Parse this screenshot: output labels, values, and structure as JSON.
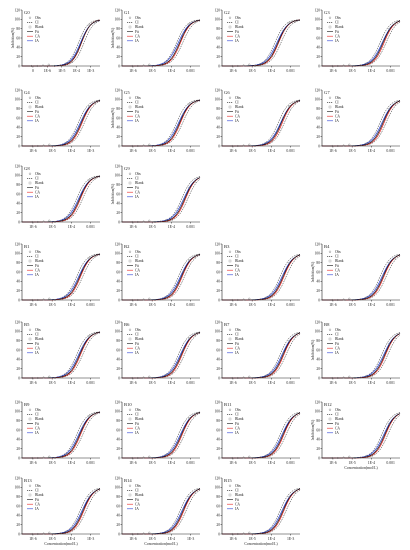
{
  "legend_labels": [
    "Obs",
    "CI",
    "Blank",
    "Fit",
    "CA",
    "IA"
  ],
  "styles": {
    "colors": {
      "fit": "#111111",
      "ca": "#e8211f",
      "ia": "#2b3fd6",
      "obs": "#777777",
      "ci": "#222222",
      "axis": "#222222"
    }
  },
  "chart_data": [
    {
      "type": "line",
      "panel": "G0",
      "ylabel": "Inhibition(%)",
      "xlabel": "",
      "xticks": [
        "0",
        "1E-6",
        "1E-5",
        "1E-4",
        "1E-3"
      ],
      "yticks": [
        "0",
        "20",
        "40",
        "60",
        "80",
        "100",
        "120"
      ],
      "ylim": [
        0,
        120
      ],
      "x_log_range": [
        -7.5,
        -2.5
      ],
      "ec50_log": -3.7,
      "ca_shift": 0.02,
      "ia_shift": -0.05,
      "show_ylabel": true,
      "show_xlabel": false,
      "legend": true
    },
    {
      "type": "line",
      "panel": "G1",
      "ylabel": "Inhibition(%)",
      "xlabel": "",
      "xticks": [
        "1E-6",
        "1E-5",
        "1E-4",
        "0.001"
      ],
      "yticks": [
        "0",
        "20",
        "40",
        "60",
        "80",
        "100",
        "120"
      ],
      "ylim": [
        0,
        120
      ],
      "x_log_range": [
        -7.2,
        -2.6
      ],
      "ec50_log": -3.8,
      "ca_shift": 0.05,
      "ia_shift": -0.08,
      "show_ylabel": true,
      "show_xlabel": false,
      "legend": true
    },
    {
      "type": "line",
      "panel": "G2",
      "ylabel": "",
      "xlabel": "",
      "xticks": [
        "1E-6",
        "1E-5",
        "1E-4",
        "0.001"
      ],
      "yticks": [
        "0",
        "20",
        "40",
        "60",
        "80",
        "100",
        "120"
      ],
      "ylim": [
        0,
        120
      ],
      "x_log_range": [
        -7.2,
        -2.6
      ],
      "ec50_log": -3.9,
      "ca_shift": 0.04,
      "ia_shift": -0.06,
      "show_ylabel": false,
      "show_xlabel": false,
      "legend": true
    },
    {
      "type": "line",
      "panel": "G3",
      "ylabel": "",
      "xlabel": "",
      "xticks": [
        "1E-6",
        "1E-5",
        "1E-4",
        "0.001"
      ],
      "yticks": [
        "0",
        "20",
        "40",
        "60",
        "80",
        "100",
        "120"
      ],
      "ylim": [
        0,
        120
      ],
      "x_log_range": [
        -7.2,
        -2.6
      ],
      "ec50_log": -3.6,
      "ca_shift": 0.06,
      "ia_shift": -0.05,
      "show_ylabel": false,
      "show_xlabel": false,
      "legend": true
    },
    {
      "type": "line",
      "panel": "G4",
      "ylabel": "",
      "xlabel": "",
      "xticks": [
        "1E-6",
        "1E-5",
        "1E-4",
        "1E-3"
      ],
      "yticks": [
        "0",
        "20",
        "40",
        "60",
        "80",
        "100",
        "120"
      ],
      "ylim": [
        0,
        120
      ],
      "x_log_range": [
        -7.2,
        -2.6
      ],
      "ec50_log": -3.7,
      "ca_shift": 0.05,
      "ia_shift": -0.06,
      "show_ylabel": false,
      "show_xlabel": false,
      "legend": true
    },
    {
      "type": "line",
      "panel": "G5",
      "ylabel": "Inhibition(%)",
      "xlabel": "",
      "xticks": [
        "1E-6",
        "1E-5",
        "1E-4",
        "0.001"
      ],
      "yticks": [
        "0",
        "20",
        "40",
        "60",
        "80",
        "100",
        "120"
      ],
      "ylim": [
        0,
        120
      ],
      "x_log_range": [
        -7.2,
        -2.6
      ],
      "ec50_log": -3.8,
      "ca_shift": 0.05,
      "ia_shift": -0.06,
      "show_ylabel": true,
      "show_xlabel": false,
      "legend": true
    },
    {
      "type": "line",
      "panel": "G6",
      "ylabel": "",
      "xlabel": "",
      "xticks": [
        "1E-6",
        "1E-5",
        "1E-4",
        "0.001"
      ],
      "yticks": [
        "0",
        "20",
        "40",
        "60",
        "80",
        "100",
        "120"
      ],
      "ylim": [
        0,
        120
      ],
      "x_log_range": [
        -7.2,
        -2.6
      ],
      "ec50_log": -3.7,
      "ca_shift": 0.06,
      "ia_shift": -0.04,
      "show_ylabel": false,
      "show_xlabel": false,
      "legend": true
    },
    {
      "type": "line",
      "panel": "G7",
      "ylabel": "",
      "xlabel": "",
      "xticks": [
        "1E-6",
        "1E-5",
        "1E-4",
        "0.001"
      ],
      "yticks": [
        "0",
        "20",
        "40",
        "60",
        "80",
        "100",
        "120"
      ],
      "ylim": [
        0,
        120
      ],
      "x_log_range": [
        -7.2,
        -2.6
      ],
      "ec50_log": -3.6,
      "ca_shift": 0.06,
      "ia_shift": -0.06,
      "show_ylabel": false,
      "show_xlabel": false,
      "legend": true
    },
    {
      "type": "line",
      "panel": "G8",
      "ylabel": "",
      "xlabel": "",
      "xticks": [
        "1E-6",
        "1E-5",
        "1E-4",
        "0.001"
      ],
      "yticks": [
        "0",
        "20",
        "40",
        "60",
        "80",
        "100",
        "120"
      ],
      "ylim": [
        0,
        120
      ],
      "x_log_range": [
        -7.2,
        -2.6
      ],
      "ec50_log": -3.8,
      "ca_shift": 0.05,
      "ia_shift": -0.06,
      "show_ylabel": false,
      "show_xlabel": false,
      "legend": true
    },
    {
      "type": "line",
      "panel": "G9",
      "ylabel": "Inhibition(%)",
      "xlabel": "",
      "xticks": [
        "1E-6",
        "1E-5",
        "1E-4",
        "0.001"
      ],
      "yticks": [
        "0",
        "20",
        "40",
        "60",
        "80",
        "100",
        "120"
      ],
      "ylim": [
        0,
        120
      ],
      "x_log_range": [
        -7.2,
        -2.6
      ],
      "ec50_log": -3.5,
      "ca_shift": 0.05,
      "ia_shift": -0.06,
      "show_ylabel": true,
      "show_xlabel": false,
      "legend": true
    },
    {
      "type": "line",
      "panel": "B1",
      "ylabel": "",
      "xlabel": "",
      "xticks": [
        "1E-6",
        "1E-5",
        "1E-4",
        "0.001"
      ],
      "yticks": [
        "0",
        "20",
        "40",
        "60",
        "80",
        "100",
        "120"
      ],
      "ylim": [
        0,
        120
      ],
      "x_log_range": [
        -7.2,
        -2.6
      ],
      "ec50_log": -3.8,
      "ca_shift": 0.05,
      "ia_shift": -0.06,
      "show_ylabel": false,
      "show_xlabel": false,
      "legend": true
    },
    {
      "type": "line",
      "panel": "B2",
      "ylabel": "",
      "xlabel": "",
      "xticks": [
        "1E-6",
        "1E-5",
        "1E-4",
        "0.001"
      ],
      "yticks": [
        "0",
        "20",
        "40",
        "60",
        "80",
        "100",
        "120"
      ],
      "ylim": [
        0,
        120
      ],
      "x_log_range": [
        -7.2,
        -2.6
      ],
      "ec50_log": -3.7,
      "ca_shift": 0.05,
      "ia_shift": -0.06,
      "show_ylabel": false,
      "show_xlabel": false,
      "legend": true
    },
    {
      "type": "line",
      "panel": "B3",
      "ylabel": "",
      "xlabel": "",
      "xticks": [
        "1E-6",
        "1E-5",
        "1E-4",
        "0.001"
      ],
      "yticks": [
        "0",
        "20",
        "40",
        "60",
        "80",
        "100",
        "120"
      ],
      "ylim": [
        0,
        120
      ],
      "x_log_range": [
        -7.2,
        -2.6
      ],
      "ec50_log": -3.6,
      "ca_shift": 0.05,
      "ia_shift": -0.06,
      "show_ylabel": false,
      "show_xlabel": false,
      "legend": true
    },
    {
      "type": "line",
      "panel": "B4",
      "ylabel": "Inhibition(%)",
      "xlabel": "",
      "xticks": [
        "1E-6",
        "1E-5",
        "1E-4",
        "0.001"
      ],
      "yticks": [
        "0",
        "20",
        "40",
        "60",
        "80",
        "100",
        "120"
      ],
      "ylim": [
        0,
        120
      ],
      "x_log_range": [
        -7.2,
        -2.6
      ],
      "ec50_log": -3.6,
      "ca_shift": 0.05,
      "ia_shift": -0.06,
      "show_ylabel": true,
      "show_xlabel": false,
      "legend": true
    },
    {
      "type": "line",
      "panel": "B5",
      "ylabel": "",
      "xlabel": "",
      "xticks": [
        "1E-6",
        "1E-5",
        "1E-4",
        "0.001"
      ],
      "yticks": [
        "0",
        "20",
        "40",
        "60",
        "80",
        "100",
        "120"
      ],
      "ylim": [
        0,
        120
      ],
      "x_log_range": [
        -7.2,
        -2.6
      ],
      "ec50_log": -3.8,
      "ca_shift": 0.05,
      "ia_shift": -0.06,
      "show_ylabel": false,
      "show_xlabel": false,
      "legend": true
    },
    {
      "type": "line",
      "panel": "B6",
      "ylabel": "",
      "xlabel": "",
      "xticks": [
        "1E-6",
        "1E-5",
        "1E-4",
        "0.001"
      ],
      "yticks": [
        "0",
        "20",
        "40",
        "60",
        "80",
        "100",
        "120"
      ],
      "ylim": [
        0,
        120
      ],
      "x_log_range": [
        -7.2,
        -2.6
      ],
      "ec50_log": -3.7,
      "ca_shift": 0.05,
      "ia_shift": -0.06,
      "show_ylabel": false,
      "show_xlabel": false,
      "legend": true
    },
    {
      "type": "line",
      "panel": "B7",
      "ylabel": "",
      "xlabel": "",
      "xticks": [
        "1E-6",
        "1E-5",
        "1E-4",
        "0.001"
      ],
      "yticks": [
        "0",
        "20",
        "40",
        "60",
        "80",
        "100",
        "120"
      ],
      "ylim": [
        0,
        120
      ],
      "x_log_range": [
        -7.2,
        -2.6
      ],
      "ec50_log": -3.6,
      "ca_shift": 0.05,
      "ia_shift": -0.06,
      "show_ylabel": false,
      "show_xlabel": false,
      "legend": true
    },
    {
      "type": "line",
      "panel": "B8",
      "ylabel": "Inhibition(%)",
      "xlabel": "",
      "xticks": [
        "1E-6",
        "1E-5",
        "1E-4",
        "0.001"
      ],
      "yticks": [
        "0",
        "20",
        "40",
        "60",
        "80",
        "100",
        "120"
      ],
      "ylim": [
        0,
        120
      ],
      "x_log_range": [
        -7.2,
        -2.6
      ],
      "ec50_log": -3.5,
      "ca_shift": 0.05,
      "ia_shift": -0.06,
      "show_ylabel": true,
      "show_xlabel": false,
      "legend": true
    },
    {
      "type": "line",
      "panel": "B9",
      "ylabel": "",
      "xlabel": "",
      "xticks": [
        "1E-6",
        "1E-5",
        "1E-4",
        "0.001"
      ],
      "yticks": [
        "0",
        "20",
        "40",
        "60",
        "80",
        "100",
        "120"
      ],
      "ylim": [
        0,
        120
      ],
      "x_log_range": [
        -7.2,
        -2.6
      ],
      "ec50_log": -3.8,
      "ca_shift": 0.05,
      "ia_shift": -0.06,
      "show_ylabel": false,
      "show_xlabel": false,
      "legend": true
    },
    {
      "type": "line",
      "panel": "B10",
      "ylabel": "",
      "xlabel": "",
      "xticks": [
        "1E-6",
        "1E-5",
        "1E-4",
        "0.001"
      ],
      "yticks": [
        "0",
        "20",
        "40",
        "60",
        "80",
        "100",
        "120"
      ],
      "ylim": [
        0,
        120
      ],
      "x_log_range": [
        -7.2,
        -2.6
      ],
      "ec50_log": -3.7,
      "ca_shift": 0.05,
      "ia_shift": -0.06,
      "show_ylabel": false,
      "show_xlabel": false,
      "legend": true
    },
    {
      "type": "line",
      "panel": "B11",
      "ylabel": "",
      "xlabel": "",
      "xticks": [
        "1E-6",
        "1E-5",
        "1E-4",
        "0.001"
      ],
      "yticks": [
        "0",
        "20",
        "40",
        "60",
        "80",
        "100",
        "120"
      ],
      "ylim": [
        0,
        120
      ],
      "x_log_range": [
        -7.2,
        -2.6
      ],
      "ec50_log": -3.6,
      "ca_shift": 0.05,
      "ia_shift": -0.06,
      "show_ylabel": false,
      "show_xlabel": false,
      "legend": true
    },
    {
      "type": "line",
      "panel": "B12",
      "ylabel": "Inhibition(%)",
      "xlabel": "Concentration(mol/L)",
      "xticks": [
        "1E-6",
        "1E-5",
        "1E-4",
        "0.001"
      ],
      "yticks": [
        "0",
        "20",
        "40",
        "60",
        "80",
        "100",
        "120"
      ],
      "ylim": [
        0,
        120
      ],
      "x_log_range": [
        -7.2,
        -2.6
      ],
      "ec50_log": -3.5,
      "ca_shift": 0.05,
      "ia_shift": -0.06,
      "show_ylabel": true,
      "show_xlabel": true,
      "legend": true
    },
    {
      "type": "line",
      "panel": "B13",
      "ylabel": "",
      "xlabel": "Concentration(mol/L)",
      "xticks": [
        "1E-6",
        "1E-5",
        "1E-4",
        "1E-3"
      ],
      "yticks": [
        "0",
        "20",
        "40",
        "60",
        "80",
        "100",
        "120"
      ],
      "ylim": [
        0,
        120
      ],
      "x_log_range": [
        -7.2,
        -2.6
      ],
      "ec50_log": -3.6,
      "ca_shift": 0.05,
      "ia_shift": -0.06,
      "show_ylabel": false,
      "show_xlabel": true,
      "legend": true
    },
    {
      "type": "line",
      "panel": "B14",
      "ylabel": "",
      "xlabel": "Concentration(mol/L)",
      "xticks": [
        "1E-6",
        "1E-5",
        "1E-4",
        "1E-3"
      ],
      "yticks": [
        "0",
        "20",
        "40",
        "60",
        "80",
        "100",
        "120"
      ],
      "ylim": [
        0,
        120
      ],
      "x_log_range": [
        -7.2,
        -2.6
      ],
      "ec50_log": -3.6,
      "ca_shift": 0.05,
      "ia_shift": -0.06,
      "show_ylabel": false,
      "show_xlabel": true,
      "legend": true
    },
    {
      "type": "line",
      "panel": "B15",
      "ylabel": "",
      "xlabel": "Concentration(mol/L)",
      "xticks": [
        "1E-6",
        "1E-5",
        "1E-4",
        "1E-3"
      ],
      "yticks": [
        "0",
        "20",
        "40",
        "60",
        "80",
        "100",
        "120"
      ],
      "ylim": [
        0,
        120
      ],
      "x_log_range": [
        -7.2,
        -2.6
      ],
      "ec50_log": -3.6,
      "ca_shift": 0.05,
      "ia_shift": -0.06,
      "show_ylabel": false,
      "show_xlabel": true,
      "legend": true
    }
  ]
}
